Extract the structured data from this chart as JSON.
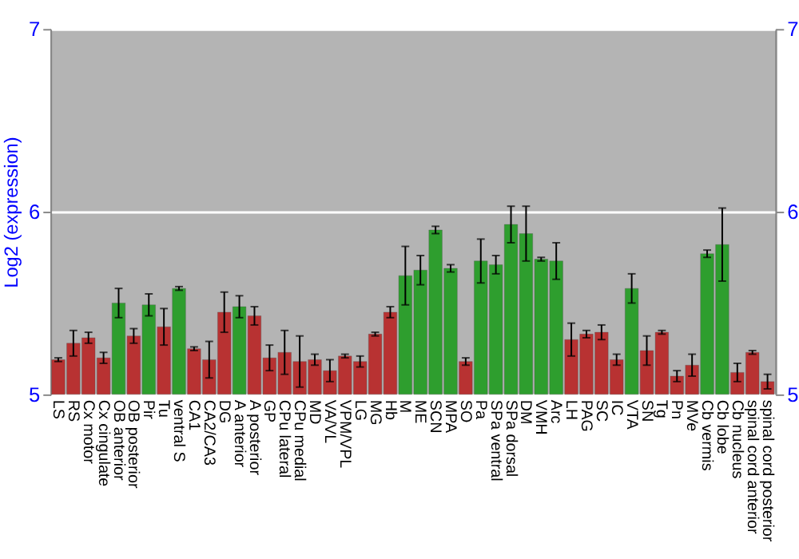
{
  "chart_data": {
    "type": "bar",
    "ylabel": "Log2 (expression)",
    "categories": [
      "LS",
      "RS",
      "Cx motor",
      "Cx cingulate",
      "OB anterior",
      "OB posterior",
      "Pir",
      "Tu",
      "ventral S",
      "CA1",
      "CA2/CA3",
      "DG",
      "A anterior",
      "A posterior",
      "GP",
      "CPu lateral",
      "CPu medial",
      "MD",
      "VA/VL",
      "VPM/VPL",
      "LG",
      "MG",
      "Hb",
      "M",
      "ME",
      "SCN",
      "MPA",
      "SO",
      "Pa",
      "SPa ventral",
      "SPa dorsal",
      "DM",
      "VMH",
      "Arc",
      "LH",
      "PAG",
      "SC",
      "IC",
      "VTA",
      "SN",
      "Tg",
      "Pn",
      "MVe",
      "Cb vermis",
      "Cb lobe",
      "Cb nucleus",
      "spinal cord anterior",
      "spinal cord posterior"
    ],
    "values": [
      5.19,
      5.28,
      5.31,
      5.2,
      5.5,
      5.32,
      5.49,
      5.37,
      5.58,
      5.25,
      5.19,
      5.45,
      5.48,
      5.43,
      5.2,
      5.23,
      5.18,
      5.19,
      5.13,
      5.21,
      5.18,
      5.33,
      5.45,
      5.65,
      5.68,
      5.9,
      5.69,
      5.18,
      5.73,
      5.71,
      5.93,
      5.88,
      5.74,
      5.73,
      5.3,
      5.33,
      5.34,
      5.19,
      5.58,
      5.24,
      5.34,
      5.1,
      5.16,
      5.77,
      5.82,
      5.12,
      5.23,
      5.07
    ],
    "errors": [
      0.01,
      0.07,
      0.03,
      0.03,
      0.08,
      0.04,
      0.06,
      0.1,
      0.01,
      0.01,
      0.1,
      0.11,
      0.06,
      0.05,
      0.07,
      0.12,
      0.14,
      0.03,
      0.06,
      0.01,
      0.03,
      0.01,
      0.03,
      0.16,
      0.08,
      0.02,
      0.02,
      0.02,
      0.12,
      0.05,
      0.1,
      0.15,
      0.01,
      0.1,
      0.09,
      0.02,
      0.04,
      0.03,
      0.08,
      0.08,
      0.01,
      0.03,
      0.06,
      0.02,
      0.2,
      0.05,
      0.01,
      0.04
    ],
    "colors": [
      "#b83232",
      "#b83232",
      "#b83232",
      "#b83232",
      "#2e9e2e",
      "#b83232",
      "#2e9e2e",
      "#b83232",
      "#2e9e2e",
      "#b83232",
      "#b83232",
      "#b83232",
      "#2e9e2e",
      "#b83232",
      "#b83232",
      "#b83232",
      "#b83232",
      "#b83232",
      "#b83232",
      "#b83232",
      "#b83232",
      "#b83232",
      "#b83232",
      "#2e9e2e",
      "#2e9e2e",
      "#2e9e2e",
      "#2e9e2e",
      "#b83232",
      "#2e9e2e",
      "#2e9e2e",
      "#2e9e2e",
      "#2e9e2e",
      "#2e9e2e",
      "#2e9e2e",
      "#b83232",
      "#b83232",
      "#b83232",
      "#b83232",
      "#2e9e2e",
      "#b83232",
      "#b83232",
      "#b83232",
      "#b83232",
      "#2e9e2e",
      "#2e9e2e",
      "#b83232",
      "#b83232",
      "#b83232"
    ],
    "ylim": [
      5,
      7
    ],
    "yticks": [
      5,
      6,
      7
    ],
    "y2lim": [
      5,
      7
    ],
    "y2ticks": [
      5,
      6,
      7
    ],
    "grid": "y"
  }
}
